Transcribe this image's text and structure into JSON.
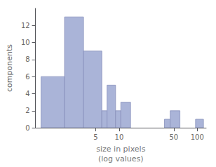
{
  "chart_data": {
    "type": "histogram",
    "xlabel": "size in pixels",
    "xlabel2": "(log values)",
    "ylabel": "components",
    "left": [
      1.0,
      2.0,
      3.5,
      6.0,
      7.0,
      9.0,
      10.5,
      38.0,
      45.0,
      95.0
    ],
    "right": [
      2.0,
      3.5,
      6.0,
      7.0,
      9.0,
      10.5,
      14.0,
      45.0,
      60.0,
      120.0
    ],
    "values": [
      6,
      13,
      9,
      2,
      5,
      2,
      3,
      1,
      2,
      1
    ],
    "color": "#aab4d8",
    "log": "x",
    "xlim": [
      0.85,
      130
    ],
    "xticks": [
      5,
      10,
      50,
      100
    ],
    "ylim": [
      0,
      14
    ],
    "yticks": [
      0,
      2,
      4,
      6,
      8,
      10,
      12
    ],
    "grid": false
  }
}
